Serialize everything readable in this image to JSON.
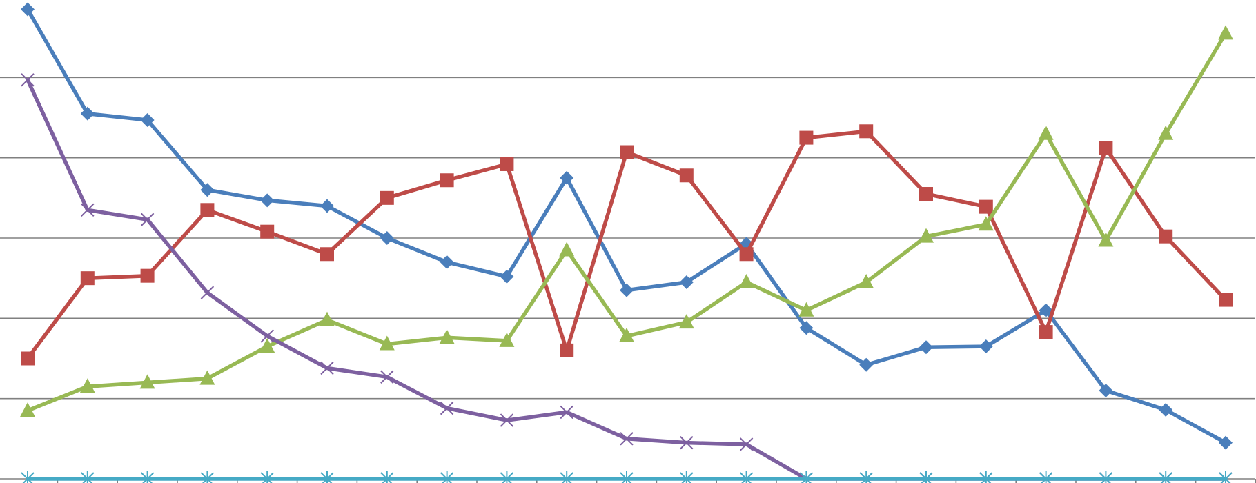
{
  "chart_data": {
    "type": "line",
    "title": "",
    "xlabel": "",
    "ylabel": "",
    "x": [
      1,
      2,
      3,
      4,
      5,
      6,
      7,
      8,
      9,
      10,
      11,
      12,
      13,
      14,
      15,
      16,
      17,
      18,
      19,
      20,
      21
    ],
    "ylim": [
      0,
      6
    ],
    "grid": true,
    "legend": "none",
    "colors": {
      "series_1": "#4a7ebb",
      "series_2": "#be4b48",
      "series_3": "#98b954",
      "series_4": "#7d60a0",
      "series_5": "#46aac5",
      "gridline": "#808080",
      "axis": "#808080"
    },
    "series": [
      {
        "marker": "diamond",
        "values": [
          5.85,
          4.55,
          4.47,
          3.6,
          3.47,
          3.4,
          3.0,
          2.7,
          2.52,
          3.75,
          2.35,
          2.45,
          2.93,
          1.88,
          1.42,
          1.64,
          1.65,
          2.1,
          1.1,
          0.86,
          0.45
        ]
      },
      {
        "marker": "square",
        "values": [
          1.5,
          2.5,
          2.53,
          3.35,
          3.08,
          2.8,
          3.5,
          3.72,
          3.92,
          1.6,
          4.07,
          3.78,
          2.8,
          4.25,
          4.33,
          3.55,
          3.39,
          1.83,
          4.12,
          3.02,
          2.23
        ]
      },
      {
        "marker": "triangle",
        "values": [
          0.85,
          1.15,
          1.2,
          1.25,
          1.65,
          1.98,
          1.68,
          1.76,
          1.72,
          2.85,
          1.78,
          1.95,
          2.45,
          2.1,
          2.45,
          3.02,
          3.17,
          4.3,
          2.97,
          4.3,
          5.55
        ]
      },
      {
        "marker": "x",
        "values": [
          4.97,
          3.35,
          3.23,
          2.32,
          1.78,
          1.38,
          1.27,
          0.88,
          0.73,
          0.83,
          0.5,
          0.45,
          0.43,
          0,
          0,
          0,
          0,
          0,
          0,
          0,
          0
        ]
      },
      {
        "marker": "star",
        "values": [
          0,
          0,
          0,
          0,
          0,
          0,
          0,
          0,
          0,
          0,
          0,
          0,
          0,
          0,
          0,
          0,
          0,
          0,
          0,
          0,
          0
        ]
      }
    ]
  }
}
